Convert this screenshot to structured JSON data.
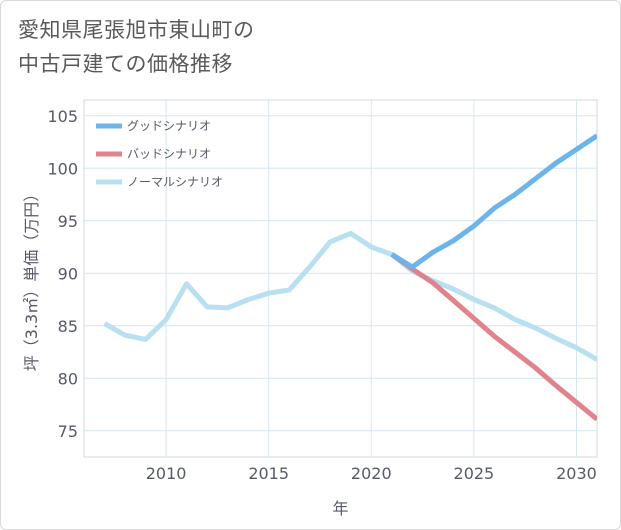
{
  "title_lines": [
    "愛知県尾張旭市東山町の",
    "中古戸建ての価格推移"
  ],
  "chart_data": {
    "type": "line",
    "xlabel": "年",
    "ylabel": "坪（3.3㎡）単価（万円）",
    "xlim": [
      2006,
      2031
    ],
    "ylim": [
      72.5,
      106.5
    ],
    "x_ticks": [
      2010,
      2015,
      2020,
      2025,
      2030
    ],
    "y_ticks": [
      75,
      80,
      85,
      90,
      95,
      100,
      105
    ],
    "grid": true,
    "legend_position": "top-left",
    "series": [
      {
        "name": "グッドシナリオ",
        "color": "#6cb4ea",
        "x": [
          2021,
          2022,
          2023,
          2024,
          2025,
          2026,
          2027,
          2028,
          2029,
          2030,
          2031
        ],
        "values": [
          91.8,
          90.6,
          92.0,
          93.1,
          94.5,
          96.2,
          97.5,
          99.0,
          100.5,
          101.8,
          103.1
        ]
      },
      {
        "name": "バッドシナリオ",
        "color": "#e0838d",
        "x": [
          2021,
          2022,
          2023,
          2024,
          2025,
          2026,
          2027,
          2028,
          2029,
          2030,
          2031
        ],
        "values": [
          91.8,
          90.4,
          89.1,
          87.4,
          85.7,
          84.0,
          82.5,
          81.0,
          79.3,
          77.7,
          76.1
        ]
      },
      {
        "name": "ノーマルシナリオ",
        "color": "#b9e0f0",
        "x": [
          2007,
          2008,
          2009,
          2010,
          2011,
          2012,
          2013,
          2014,
          2015,
          2016,
          2017,
          2018,
          2019,
          2020,
          2021,
          2022,
          2023,
          2024,
          2025,
          2026,
          2027,
          2028,
          2029,
          2030,
          2031
        ],
        "values": [
          85.2,
          84.1,
          83.7,
          85.6,
          89.0,
          86.8,
          86.7,
          87.5,
          88.1,
          88.4,
          90.6,
          93.0,
          93.8,
          92.5,
          91.8,
          90.2,
          89.3,
          88.5,
          87.5,
          86.7,
          85.6,
          84.8,
          83.8,
          82.9,
          81.8
        ]
      }
    ]
  }
}
